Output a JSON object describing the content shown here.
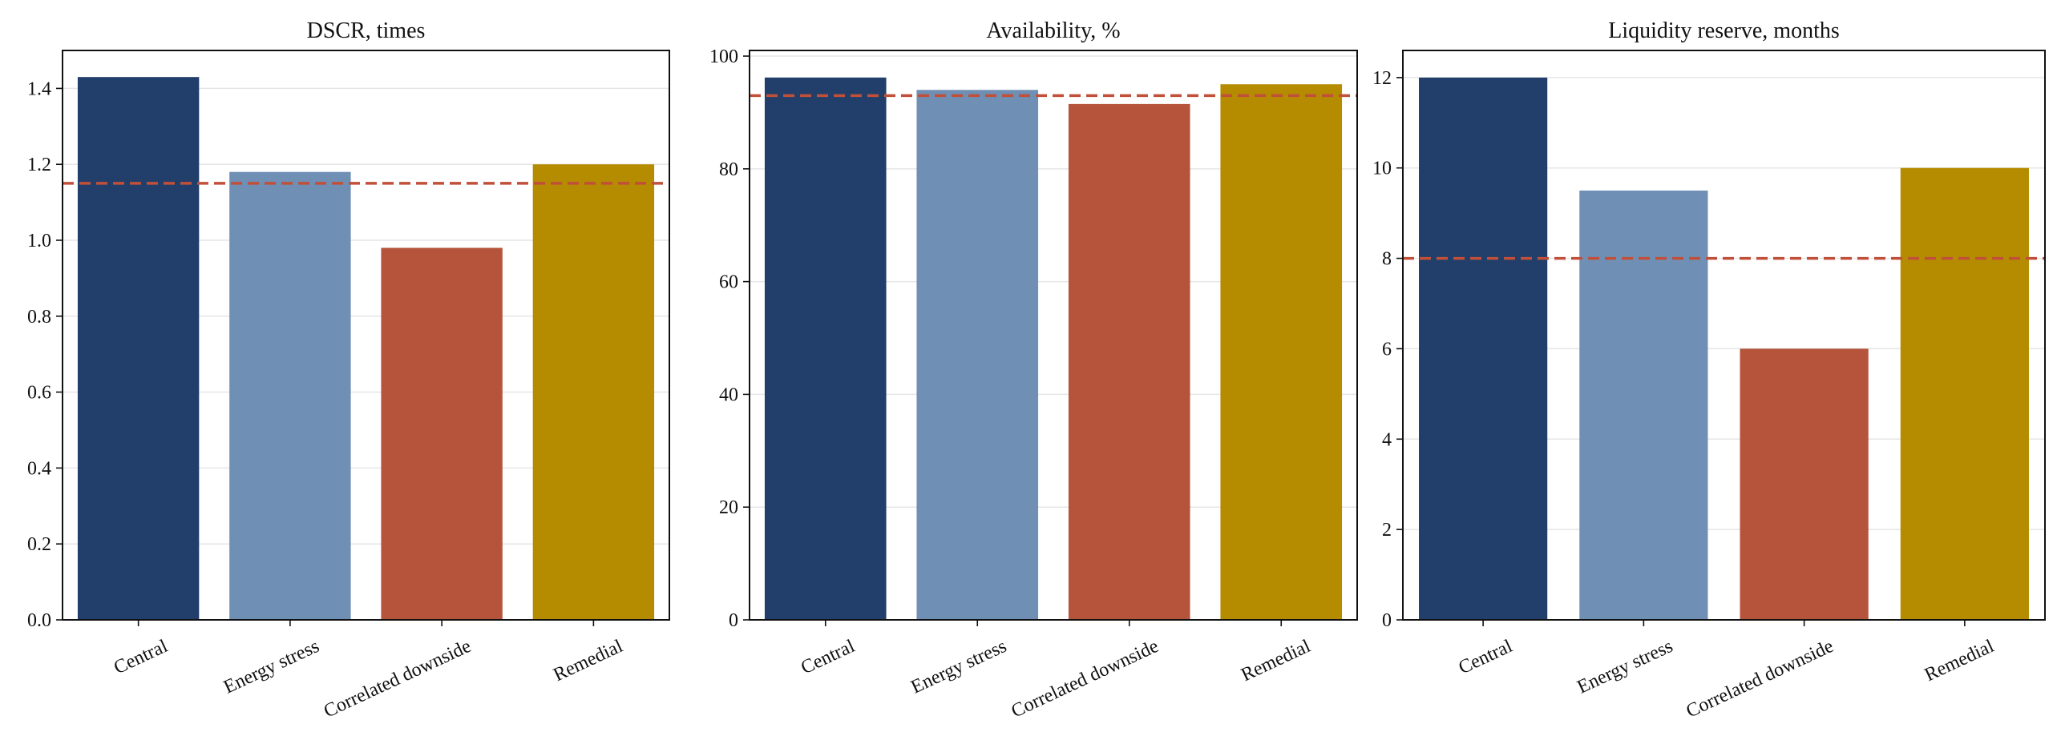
{
  "colors": {
    "central": "#213f6a",
    "energy_stress": "#6f8fb5",
    "correlated_downside": "#b5543b",
    "remedial": "#b58b00",
    "threshold_line": "#c0503a",
    "grid": "#e6e6e6"
  },
  "chart_data": [
    {
      "type": "bar",
      "title": "DSCR, times",
      "categories": [
        "Central",
        "Energy stress",
        "Correlated downside",
        "Remedial"
      ],
      "values": [
        1.43,
        1.18,
        0.98,
        1.2
      ],
      "threshold": 1.15,
      "ylim": [
        0,
        1.5
      ],
      "yticks": [
        0.0,
        0.2,
        0.4,
        0.6,
        0.8,
        1.0,
        1.2,
        1.4
      ],
      "ytick_labels": [
        "0.0",
        "0.2",
        "0.4",
        "0.6",
        "0.8",
        "1.0",
        "1.2",
        "1.4"
      ],
      "grid": "y",
      "xlabel": "",
      "ylabel": ""
    },
    {
      "type": "bar",
      "title": "Availability, %",
      "categories": [
        "Central",
        "Energy stress",
        "Correlated downside",
        "Remedial"
      ],
      "values": [
        96.2,
        94.0,
        91.5,
        95.0
      ],
      "threshold": 93.0,
      "ylim": [
        0,
        101
      ],
      "yticks": [
        0,
        20,
        40,
        60,
        80,
        100
      ],
      "ytick_labels": [
        "0",
        "20",
        "40",
        "60",
        "80",
        "100"
      ],
      "grid": "y",
      "xlabel": "",
      "ylabel": ""
    },
    {
      "type": "bar",
      "title": "Liquidity reserve, months",
      "categories": [
        "Central",
        "Energy stress",
        "Correlated downside",
        "Remedial"
      ],
      "values": [
        12.0,
        9.5,
        6.0,
        10.0
      ],
      "threshold": 8.0,
      "ylim": [
        0,
        12.6
      ],
      "yticks": [
        0,
        2,
        4,
        6,
        8,
        10,
        12
      ],
      "ytick_labels": [
        "0",
        "2",
        "4",
        "6",
        "8",
        "10",
        "12"
      ],
      "grid": "y",
      "xlabel": "",
      "ylabel": ""
    }
  ]
}
